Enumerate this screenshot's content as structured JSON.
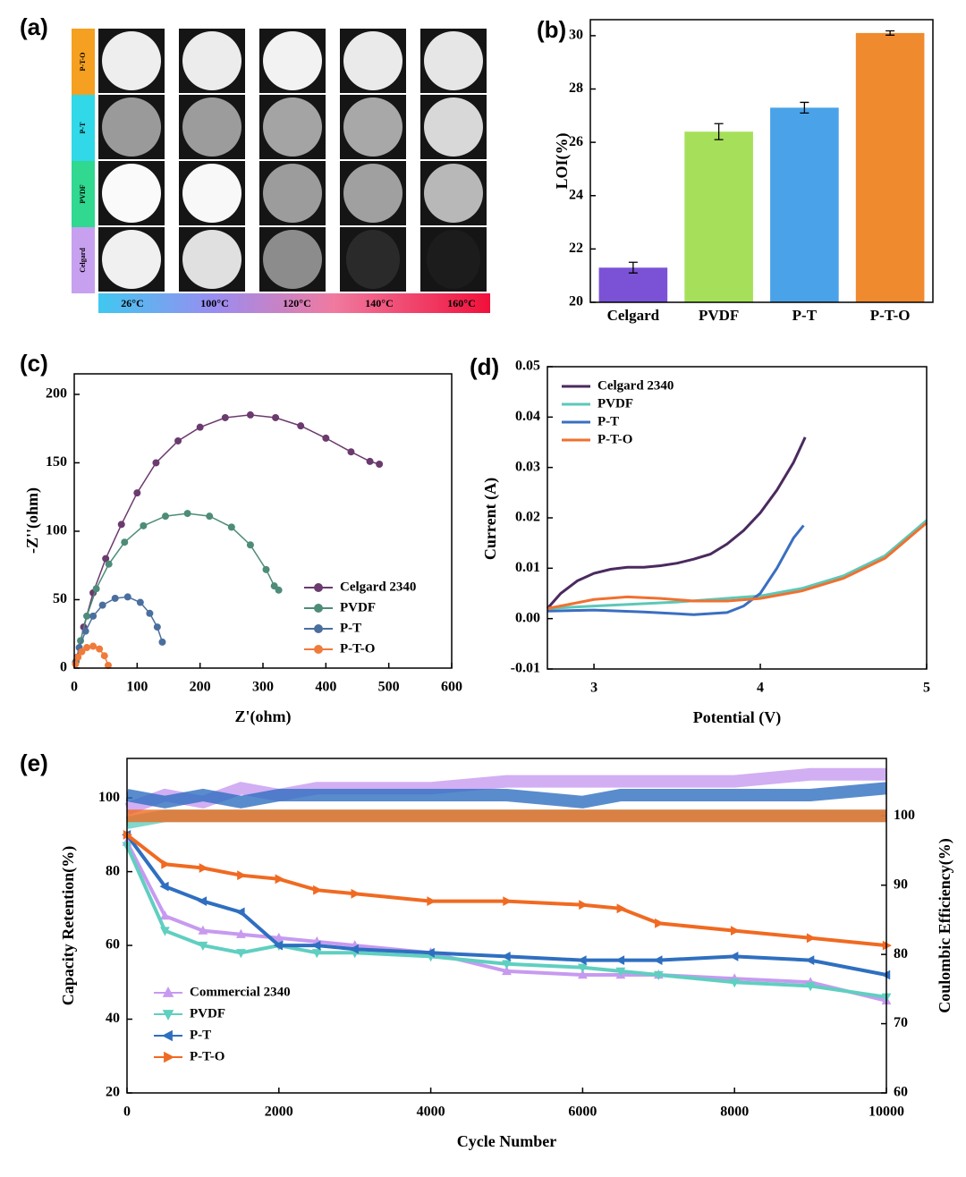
{
  "photo_grid": {
    "label": "(a)",
    "rows": [
      "P-T-O",
      "P-T",
      "PVDF",
      "Celgard"
    ],
    "temperatures": [
      "26°C",
      "100°C",
      "120°C",
      "140°C",
      "160°C"
    ]
  },
  "chart_data": [
    {
      "type": "bar",
      "label": "(b)",
      "ylabel": "LOI(%)",
      "categories": [
        "Celgard",
        "PVDF",
        "P-T",
        "P-T-O"
      ],
      "values": [
        21.3,
        26.4,
        27.3,
        30.1
      ],
      "errors": [
        0.2,
        0.3,
        0.2,
        0.08
      ],
      "colors": [
        "#7b52d6",
        "#a6e05a",
        "#4aa3e8",
        "#f08a2e"
      ],
      "ylim": [
        20,
        30.6
      ],
      "yticks": [
        20,
        22,
        24,
        26,
        28,
        30
      ]
    },
    {
      "type": "line-marker",
      "label": "(c)",
      "xlabel": "Z'(ohm)",
      "ylabel": "-Z''(ohm)",
      "xlim": [
        0,
        600
      ],
      "xticks": [
        0,
        100,
        200,
        300,
        400,
        500,
        600
      ],
      "ylim": [
        0,
        215
      ],
      "yticks": [
        0,
        50,
        100,
        150,
        200
      ],
      "series": [
        {
          "name": "Celgard 2340",
          "color": "#6b3a6e",
          "x": [
            5,
            15,
            30,
            50,
            75,
            100,
            130,
            165,
            200,
            240,
            280,
            320,
            360,
            400,
            440,
            470,
            485
          ],
          "values": [
            8,
            30,
            55,
            80,
            105,
            128,
            150,
            166,
            176,
            183,
            185,
            183,
            177,
            168,
            158,
            151,
            149
          ]
        },
        {
          "name": "PVDF",
          "color": "#4d8c78",
          "x": [
            3,
            10,
            20,
            35,
            55,
            80,
            110,
            145,
            180,
            215,
            250,
            280,
            305,
            318,
            325
          ],
          "values": [
            5,
            20,
            38,
            58,
            76,
            92,
            104,
            111,
            113,
            111,
            103,
            90,
            72,
            60,
            57
          ]
        },
        {
          "name": "P-T",
          "color": "#4a6f9e",
          "x": [
            2,
            8,
            18,
            30,
            45,
            65,
            85,
            105,
            120,
            132,
            140
          ],
          "values": [
            4,
            15,
            27,
            38,
            46,
            51,
            52,
            48,
            40,
            30,
            19
          ]
        },
        {
          "name": "P-T-O",
          "color": "#f07a3a",
          "x": [
            2,
            6,
            12,
            20,
            30,
            40,
            48,
            54
          ],
          "values": [
            3,
            8,
            12,
            15,
            16,
            14,
            9,
            2
          ]
        }
      ]
    },
    {
      "type": "line",
      "label": "(d)",
      "xlabel": "Potential (V)",
      "ylabel": "Current (A)",
      "xlim": [
        2.72,
        5
      ],
      "xticks": [
        3,
        4,
        5
      ],
      "ylim": [
        -0.01,
        0.05
      ],
      "yticks": [
        -0.01,
        {
          "value": 0,
          "label": "0.00"
        },
        0.01,
        0.02,
        0.03,
        0.04,
        0.05
      ],
      "series": [
        {
          "name": "Celgard 2340",
          "color": "#4a2a5e",
          "x": [
            2.72,
            2.8,
            2.9,
            3.0,
            3.1,
            3.2,
            3.3,
            3.4,
            3.5,
            3.6,
            3.7,
            3.8,
            3.9,
            4.0,
            4.1,
            4.2,
            4.27
          ],
          "values": [
            0.002,
            0.005,
            0.0075,
            0.009,
            0.0098,
            0.0102,
            0.0102,
            0.0105,
            0.011,
            0.0118,
            0.0128,
            0.0148,
            0.0175,
            0.021,
            0.0255,
            0.031,
            0.036
          ]
        },
        {
          "name": "PVDF",
          "color": "#5cc8b8",
          "x": [
            2.72,
            3.0,
            3.5,
            4.0,
            4.25,
            4.5,
            4.75,
            5.0
          ],
          "values": [
            0.002,
            0.0025,
            0.0033,
            0.0045,
            0.006,
            0.0085,
            0.0125,
            0.0195
          ]
        },
        {
          "name": "P-T",
          "color": "#3a6fc0",
          "x": [
            2.72,
            3.0,
            3.3,
            3.6,
            3.8,
            3.9,
            4.0,
            4.1,
            4.2,
            4.26
          ],
          "values": [
            0.0015,
            0.0017,
            0.0013,
            0.0008,
            0.0012,
            0.0025,
            0.005,
            0.01,
            0.016,
            0.0185
          ]
        },
        {
          "name": "P-T-O",
          "color": "#f07030",
          "x": [
            2.72,
            3.0,
            3.2,
            3.4,
            3.6,
            3.8,
            4.0,
            4.25,
            4.5,
            4.75,
            5.0
          ],
          "values": [
            0.002,
            0.0038,
            0.0043,
            0.004,
            0.0035,
            0.0035,
            0.004,
            0.0055,
            0.008,
            0.012,
            0.019
          ]
        }
      ]
    },
    {
      "type": "dual-line",
      "label": "(e)",
      "xlabel": "Cycle Number",
      "ylabel": "Capacity Retention(%)",
      "y2label": "Coulombic Efficiency(%)",
      "xlim": [
        0,
        10000
      ],
      "xticks": [
        0,
        2000,
        4000,
        6000,
        8000,
        10000
      ],
      "ylim": [
        20,
        110.7
      ],
      "yticks": [
        20,
        40,
        60,
        80,
        100
      ],
      "y2lim": [
        60,
        108.3
      ],
      "y2ticks": [
        60,
        70,
        80,
        90,
        100
      ],
      "x": [
        0,
        500,
        1000,
        1500,
        2000,
        2500,
        3000,
        4000,
        5000,
        6000,
        6500,
        7000,
        8000,
        9000,
        10000
      ],
      "series": [
        {
          "name": "Commercial 2340",
          "color": "#c79af0",
          "marker": "triangle-up",
          "values": [
            88,
            68,
            64,
            63,
            62,
            61,
            60,
            58,
            53,
            52,
            52,
            52,
            51,
            50,
            45
          ],
          "ce_values": [
            101,
            103,
            102,
            104,
            103,
            104,
            104,
            104,
            105,
            105,
            105,
            105,
            105,
            106,
            106
          ]
        },
        {
          "name": "PVDF",
          "color": "#5fcfc0",
          "marker": "triangle-down",
          "values": [
            87,
            64,
            60,
            58,
            60,
            58,
            58,
            57,
            55,
            54,
            53,
            52,
            50,
            49,
            46
          ],
          "ce_values": [
            99,
            100,
            100,
            100,
            100,
            100,
            100,
            100,
            100,
            100,
            100,
            100,
            100,
            100,
            100
          ]
        },
        {
          "name": "P-T",
          "color": "#2f6fc0",
          "marker": "triangle-left",
          "values": [
            90,
            76,
            72,
            69,
            60,
            60,
            59,
            58,
            57,
            56,
            56,
            56,
            57,
            56,
            52
          ],
          "ce_values": [
            103,
            102,
            103,
            102,
            103,
            103,
            103,
            103,
            103,
            102,
            103,
            103,
            103,
            103,
            104
          ]
        },
        {
          "name": "P-T-O",
          "color": "#f06a22",
          "marker": "triangle-right",
          "values": [
            90,
            82,
            81,
            79,
            78,
            75,
            74,
            72,
            72,
            71,
            70,
            66,
            64,
            62,
            60
          ],
          "ce_values": [
            100,
            100,
            100,
            100,
            100,
            100,
            100,
            100,
            100,
            100,
            100,
            100,
            100,
            100,
            100
          ]
        }
      ]
    }
  ]
}
